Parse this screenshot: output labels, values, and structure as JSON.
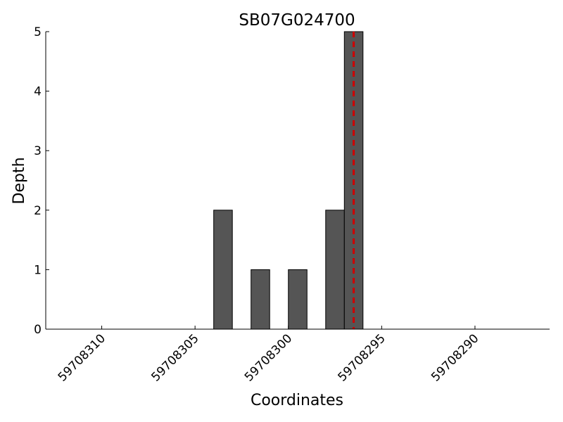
{
  "chart_data": {
    "type": "histogram",
    "title": "SB07G024700",
    "xlabel": "Coordinates",
    "ylabel": "Depth",
    "bins": [
      59708304,
      59708303,
      59708302,
      59708301,
      59708300,
      59708299,
      59708298,
      59708297,
      59708296
    ],
    "values": [
      2,
      0,
      1,
      0,
      1,
      0,
      2,
      5
    ],
    "color": "#555555",
    "xlim": [
      59708313,
      59708286
    ],
    "xticks": [
      59708310,
      59708305,
      59708300,
      59708295,
      59708290
    ],
    "ylim": [
      0,
      5
    ],
    "yticks": [
      0,
      1,
      2,
      3,
      4,
      5
    ],
    "grid": false,
    "vline": {
      "x": 59708296.5,
      "color": "#cc0000"
    }
  }
}
